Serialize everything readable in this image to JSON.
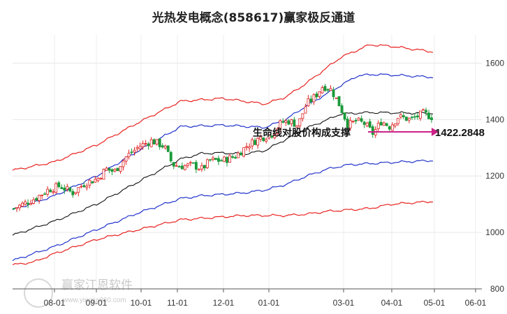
{
  "chart_data": {
    "type": "candlestick",
    "title": "光热发电概念(858617)赢家极反通道",
    "x_tick_labels": [
      "08-01",
      "09-01",
      "10-01",
      "11-01",
      "12-01",
      "01-01",
      "03-01",
      "04-01",
      "05-01",
      "06-01"
    ],
    "y_tick_labels": [
      "1600",
      "1400",
      "1200",
      "1000",
      "800"
    ],
    "ylim": [
      800,
      1700
    ],
    "grid": true,
    "annotation": {
      "text": "生命线对股价构成支撑",
      "price_label": "1422.2848",
      "value": 1422.2848
    },
    "colors": {
      "up": "#e02020",
      "down": "#1a9a3a",
      "outer_band": "#e8221f",
      "inner_band": "#2233cc",
      "life_line": "#111111",
      "marker": "#cc2288"
    },
    "series": [
      {
        "id": "upper-outer",
        "color": "#e8221f",
        "points": [
          [
            0,
            1220
          ],
          [
            0.1,
            1250
          ],
          [
            0.2,
            1310
          ],
          [
            0.3,
            1390
          ],
          [
            0.4,
            1465
          ],
          [
            0.5,
            1475
          ],
          [
            0.6,
            1455
          ],
          [
            0.65,
            1480
          ],
          [
            0.7,
            1530
          ],
          [
            0.78,
            1620
          ],
          [
            0.85,
            1665
          ],
          [
            0.9,
            1660
          ],
          [
            0.95,
            1650
          ],
          [
            1,
            1640
          ]
        ]
      },
      {
        "id": "upper-inner",
        "color": "#2233cc",
        "points": [
          [
            0,
            1080
          ],
          [
            0.1,
            1130
          ],
          [
            0.2,
            1200
          ],
          [
            0.3,
            1290
          ],
          [
            0.4,
            1375
          ],
          [
            0.5,
            1380
          ],
          [
            0.6,
            1372
          ],
          [
            0.65,
            1400
          ],
          [
            0.7,
            1450
          ],
          [
            0.78,
            1520
          ],
          [
            0.82,
            1555
          ],
          [
            0.86,
            1560
          ],
          [
            0.9,
            1558
          ],
          [
            1,
            1550
          ]
        ]
      },
      {
        "id": "life-line",
        "color": "#111111",
        "points": [
          [
            0,
            990
          ],
          [
            0.1,
            1040
          ],
          [
            0.2,
            1100
          ],
          [
            0.3,
            1180
          ],
          [
            0.4,
            1260
          ],
          [
            0.45,
            1280
          ],
          [
            0.5,
            1282
          ],
          [
            0.55,
            1278
          ],
          [
            0.6,
            1290
          ],
          [
            0.65,
            1330
          ],
          [
            0.7,
            1370
          ],
          [
            0.75,
            1400
          ],
          [
            0.78,
            1420
          ],
          [
            0.85,
            1425
          ],
          [
            1,
            1422
          ]
        ]
      },
      {
        "id": "lower-inner",
        "color": "#2233cc",
        "points": [
          [
            0,
            900
          ],
          [
            0.1,
            950
          ],
          [
            0.2,
            1010
          ],
          [
            0.3,
            1070
          ],
          [
            0.4,
            1120
          ],
          [
            0.45,
            1130
          ],
          [
            0.5,
            1135
          ],
          [
            0.55,
            1140
          ],
          [
            0.6,
            1150
          ],
          [
            0.65,
            1170
          ],
          [
            0.7,
            1200
          ],
          [
            0.75,
            1225
          ],
          [
            0.8,
            1240
          ],
          [
            0.9,
            1248
          ],
          [
            1,
            1255
          ]
        ]
      },
      {
        "id": "lower-outer",
        "color": "#e8221f",
        "points": [
          [
            0,
            885
          ],
          [
            0.05,
            895
          ],
          [
            0.1,
            925
          ],
          [
            0.2,
            975
          ],
          [
            0.3,
            1010
          ],
          [
            0.4,
            1045
          ],
          [
            0.45,
            1050
          ],
          [
            0.5,
            1055
          ],
          [
            0.55,
            1060
          ],
          [
            0.6,
            1060
          ],
          [
            0.65,
            1060
          ],
          [
            0.7,
            1065
          ],
          [
            0.75,
            1075
          ],
          [
            0.8,
            1080
          ],
          [
            0.85,
            1085
          ],
          [
            0.9,
            1100
          ],
          [
            1,
            1110
          ]
        ]
      }
    ],
    "close_path": [
      [
        0,
        1085
      ],
      [
        0.05,
        1120
      ],
      [
        0.08,
        1150
      ],
      [
        0.11,
        1165
      ],
      [
        0.14,
        1140
      ],
      [
        0.17,
        1175
      ],
      [
        0.2,
        1190
      ],
      [
        0.22,
        1225
      ],
      [
        0.24,
        1215
      ],
      [
        0.27,
        1270
      ],
      [
        0.3,
        1305
      ],
      [
        0.33,
        1325
      ],
      [
        0.36,
        1305
      ],
      [
        0.38,
        1240
      ],
      [
        0.4,
        1235
      ],
      [
        0.43,
        1238
      ],
      [
        0.45,
        1225
      ],
      [
        0.47,
        1255
      ],
      [
        0.5,
        1255
      ],
      [
        0.53,
        1270
      ],
      [
        0.56,
        1310
      ],
      [
        0.59,
        1335
      ],
      [
        0.62,
        1350
      ],
      [
        0.64,
        1390
      ],
      [
        0.66,
        1395
      ],
      [
        0.68,
        1380
      ],
      [
        0.7,
        1455
      ],
      [
        0.72,
        1480
      ],
      [
        0.74,
        1520
      ],
      [
        0.76,
        1505
      ],
      [
        0.78,
        1450
      ],
      [
        0.8,
        1380
      ],
      [
        0.82,
        1395
      ],
      [
        0.84,
        1385
      ],
      [
        0.86,
        1350
      ],
      [
        0.88,
        1395
      ],
      [
        0.9,
        1375
      ],
      [
        0.92,
        1410
      ],
      [
        0.95,
        1400
      ],
      [
        0.98,
        1422
      ],
      [
        1,
        1410
      ]
    ]
  },
  "watermark": {
    "brand": "赢家江恩软件",
    "site": "www.yingjia360.com"
  }
}
